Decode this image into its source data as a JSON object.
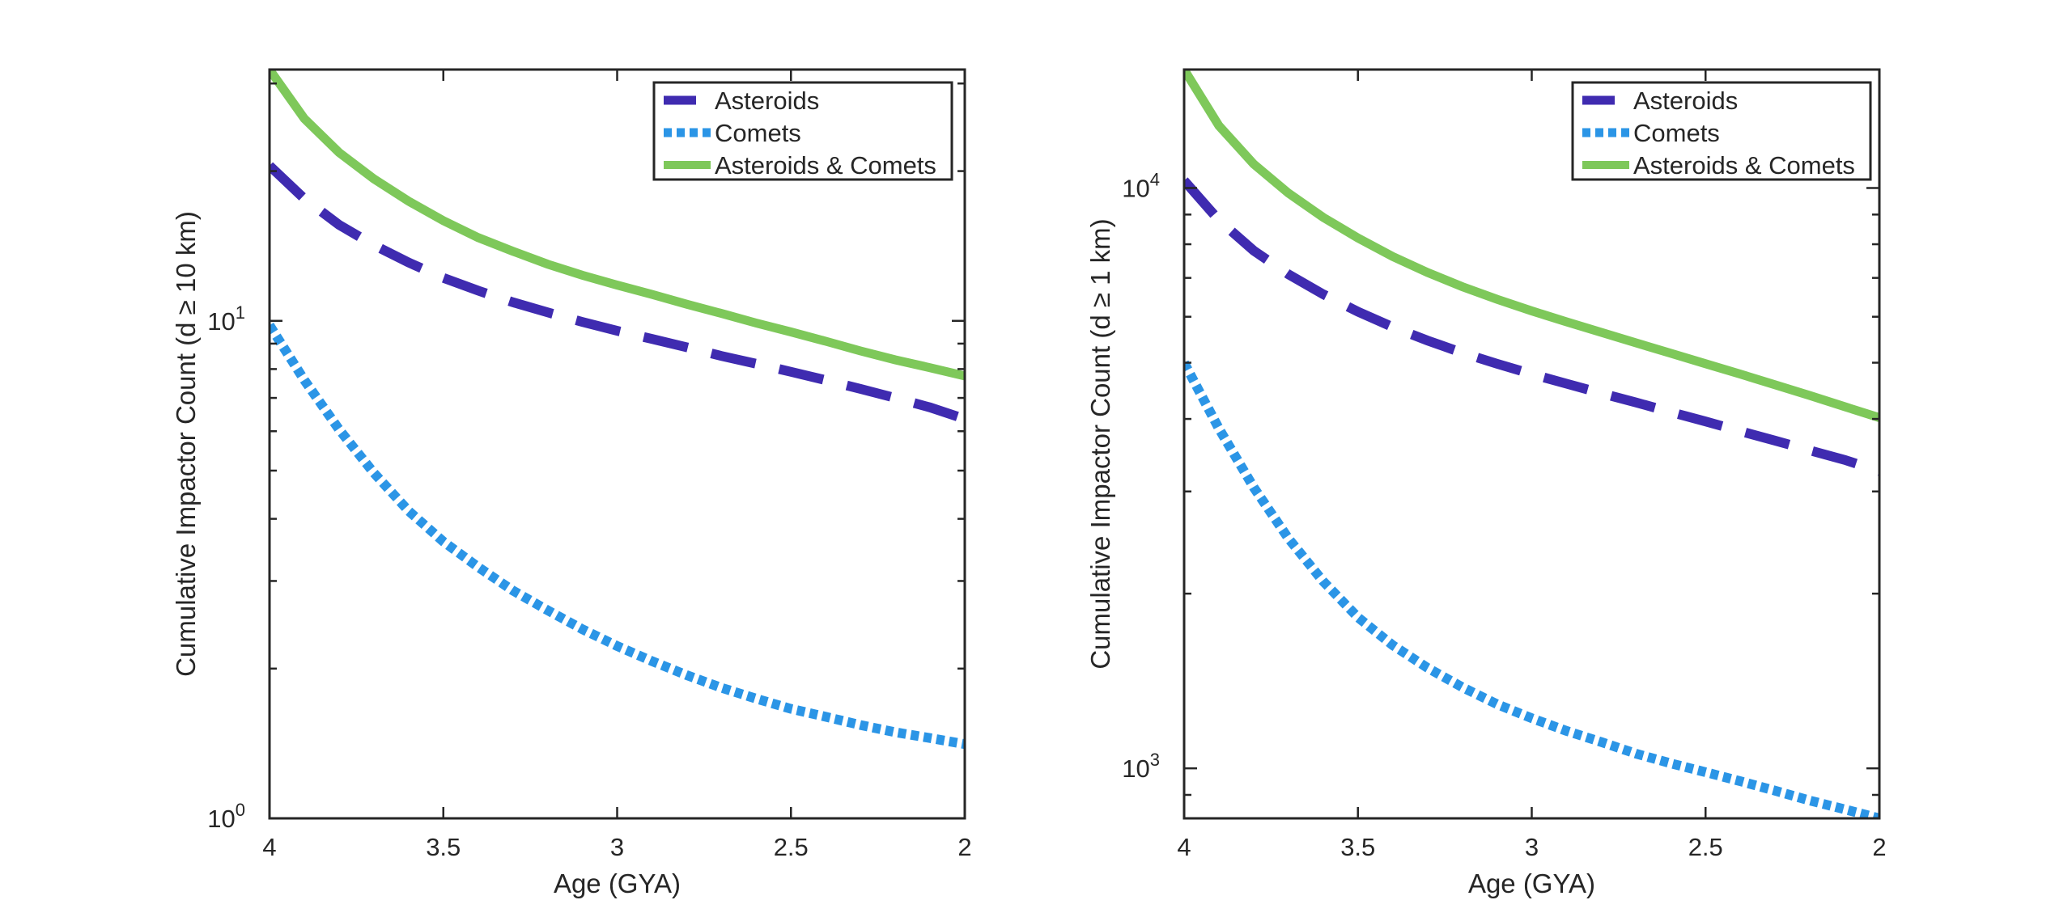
{
  "chart_data": [
    {
      "type": "line",
      "xlabel": "Age (GYA)",
      "ylabel": "Cumulative Impactor Count (d ≥ 10 km)",
      "x_reversed": true,
      "xlim": [
        2,
        4
      ],
      "ylim": [
        1,
        32
      ],
      "yscale": "log",
      "xticks": [
        "4",
        "3.5",
        "3",
        "2.5",
        "2"
      ],
      "xtick_values": [
        4,
        3.5,
        3,
        2.5,
        2
      ],
      "yticks": [
        {
          "base": "10",
          "exp": "0",
          "value": 1
        },
        {
          "base": "10",
          "exp": "1",
          "value": 10
        }
      ],
      "grid": false,
      "legend_position": "top-right",
      "x": [
        4,
        3.9,
        3.8,
        3.7,
        3.6,
        3.5,
        3.4,
        3.3,
        3.2,
        3.1,
        3,
        2.9,
        2.8,
        2.7,
        2.6,
        2.5,
        2.4,
        2.3,
        2.2,
        2.1,
        2
      ],
      "series": [
        {
          "name": "Asteroids",
          "style": "dashed",
          "color": "#3f2bb0",
          "values": [
            20.5,
            17.6,
            15.6,
            14.2,
            13.1,
            12.2,
            11.5,
            10.9,
            10.4,
            9.95,
            9.55,
            9.2,
            8.85,
            8.5,
            8.2,
            7.9,
            7.6,
            7.3,
            7.0,
            6.7,
            6.35
          ]
        },
        {
          "name": "Comets",
          "style": "dotted",
          "color": "#2b95e6",
          "values": [
            9.8,
            7.6,
            6.05,
            4.95,
            4.15,
            3.6,
            3.2,
            2.87,
            2.62,
            2.4,
            2.22,
            2.07,
            1.94,
            1.83,
            1.74,
            1.66,
            1.6,
            1.54,
            1.49,
            1.45,
            1.41
          ]
        },
        {
          "name": "Asteroids & Comets",
          "style": "solid",
          "color": "#7ec85a",
          "values": [
            32,
            25.5,
            21.8,
            19.3,
            17.4,
            15.9,
            14.7,
            13.8,
            13.0,
            12.35,
            11.8,
            11.3,
            10.8,
            10.35,
            9.9,
            9.5,
            9.1,
            8.7,
            8.35,
            8.05,
            7.75
          ]
        }
      ]
    },
    {
      "type": "line",
      "xlabel": "Age (GYA)",
      "ylabel": "Cumulative Impactor Count (d ≥ 1 km)",
      "x_reversed": true,
      "xlim": [
        2,
        4
      ],
      "ylim": [
        820,
        16000
      ],
      "yscale": "log",
      "xticks": [
        "4",
        "3.5",
        "3",
        "2.5",
        "2"
      ],
      "xtick_values": [
        4,
        3.5,
        3,
        2.5,
        2
      ],
      "yticks": [
        {
          "base": "10",
          "exp": "3",
          "value": 1000
        },
        {
          "base": "10",
          "exp": "4",
          "value": 10000
        }
      ],
      "grid": false,
      "legend_position": "top-right",
      "x": [
        4,
        3.9,
        3.8,
        3.7,
        3.6,
        3.5,
        3.4,
        3.3,
        3.2,
        3.1,
        3,
        2.9,
        2.8,
        2.7,
        2.6,
        2.5,
        2.4,
        2.3,
        2.2,
        2.1,
        2
      ],
      "series": [
        {
          "name": "Asteroids",
          "style": "dashed",
          "color": "#3f2bb0",
          "values": [
            10300,
            8800,
            7800,
            7100,
            6560,
            6120,
            5760,
            5460,
            5200,
            4980,
            4780,
            4600,
            4430,
            4270,
            4110,
            3960,
            3810,
            3670,
            3530,
            3400,
            3250
          ]
        },
        {
          "name": "Comets",
          "style": "dotted",
          "color": "#2b95e6",
          "values": [
            5000,
            3850,
            3050,
            2490,
            2100,
            1820,
            1630,
            1490,
            1380,
            1290,
            1220,
            1160,
            1110,
            1060,
            1020,
            985,
            950,
            915,
            880,
            850,
            820
          ]
        },
        {
          "name": "Asteroids & Comets",
          "style": "solid",
          "color": "#7ec85a",
          "values": [
            16000,
            12800,
            11000,
            9800,
            8900,
            8200,
            7620,
            7150,
            6760,
            6430,
            6140,
            5880,
            5640,
            5410,
            5190,
            4980,
            4780,
            4580,
            4390,
            4200,
            4020
          ]
        }
      ]
    }
  ]
}
